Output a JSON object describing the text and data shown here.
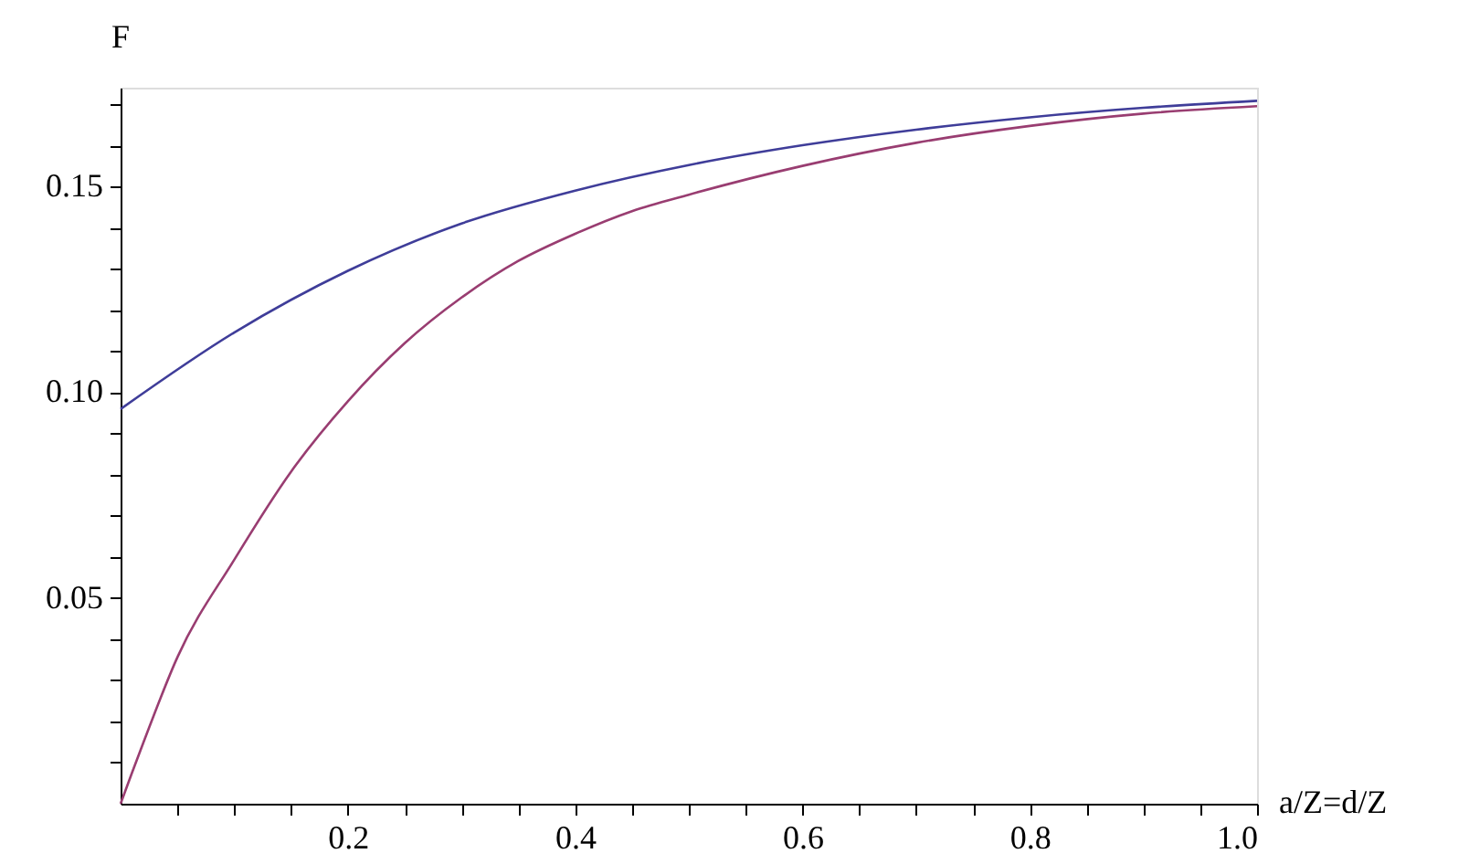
{
  "chart_data": {
    "type": "line",
    "xlabel": "a/Z=d/Z",
    "ylabel": "F",
    "xlim": [
      0,
      1.0
    ],
    "ylim": [
      0,
      0.174
    ],
    "xticks": [
      {
        "value": 0.05,
        "label": null
      },
      {
        "value": 0.1,
        "label": null
      },
      {
        "value": 0.15,
        "label": null
      },
      0.2,
      {
        "value": 0.25,
        "label": null
      },
      {
        "value": 0.3,
        "label": null
      },
      {
        "value": 0.35,
        "label": null
      },
      0.4,
      {
        "value": 0.45,
        "label": null
      },
      {
        "value": 0.5,
        "label": null
      },
      {
        "value": 0.55,
        "label": null
      },
      0.6,
      {
        "value": 0.65,
        "label": null
      },
      {
        "value": 0.7,
        "label": null
      },
      {
        "value": 0.75,
        "label": null
      },
      0.8,
      {
        "value": 0.85,
        "label": null
      },
      {
        "value": 0.9,
        "label": null
      },
      {
        "value": 0.95,
        "label": null
      },
      {
        "value": 1.0,
        "label": "1.0"
      }
    ],
    "yticks": [
      {
        "value": 0.01,
        "label": null
      },
      {
        "value": 0.02,
        "label": null
      },
      {
        "value": 0.03,
        "label": null
      },
      {
        "value": 0.04,
        "label": null
      },
      0.05,
      {
        "value": 0.06,
        "label": null
      },
      {
        "value": 0.07,
        "label": null
      },
      {
        "value": 0.08,
        "label": null
      },
      {
        "value": 0.09,
        "label": null
      },
      {
        "value": 0.1,
        "label": "0.10"
      },
      {
        "value": 0.11,
        "label": null
      },
      {
        "value": 0.12,
        "label": null
      },
      {
        "value": 0.13,
        "label": null
      },
      {
        "value": 0.14,
        "label": null
      },
      0.15,
      {
        "value": 0.16,
        "label": null
      },
      {
        "value": 0.17,
        "label": null
      }
    ],
    "grid": false,
    "legend": false,
    "marker": "none",
    "line_style": "solid",
    "series": [
      {
        "color": "#3f3d99",
        "x": [
          0,
          0.1,
          0.2,
          0.3,
          0.4,
          0.5,
          0.6,
          0.7,
          0.8,
          0.9,
          1.0
        ],
        "values": [
          0.0959,
          0.1145,
          0.1295,
          0.141,
          0.149,
          0.1552,
          0.16,
          0.1638,
          0.1668,
          0.1691,
          0.1708
        ]
      },
      {
        "color": "#993d71",
        "x": [
          0,
          0.01,
          0.02,
          0.05,
          0.1,
          0.15,
          0.2,
          0.25,
          0.3,
          0.35,
          0.4,
          0.45,
          0.5,
          0.6,
          0.7,
          0.8,
          0.9,
          1.0
        ],
        "values": [
          0,
          0.0075,
          0.0148,
          0.0356,
          0.0593,
          0.0807,
          0.0978,
          0.1119,
          0.123,
          0.1319,
          0.1385,
          0.144,
          0.148,
          0.155,
          0.1606,
          0.1647,
          0.1677,
          0.1695
        ]
      }
    ]
  }
}
